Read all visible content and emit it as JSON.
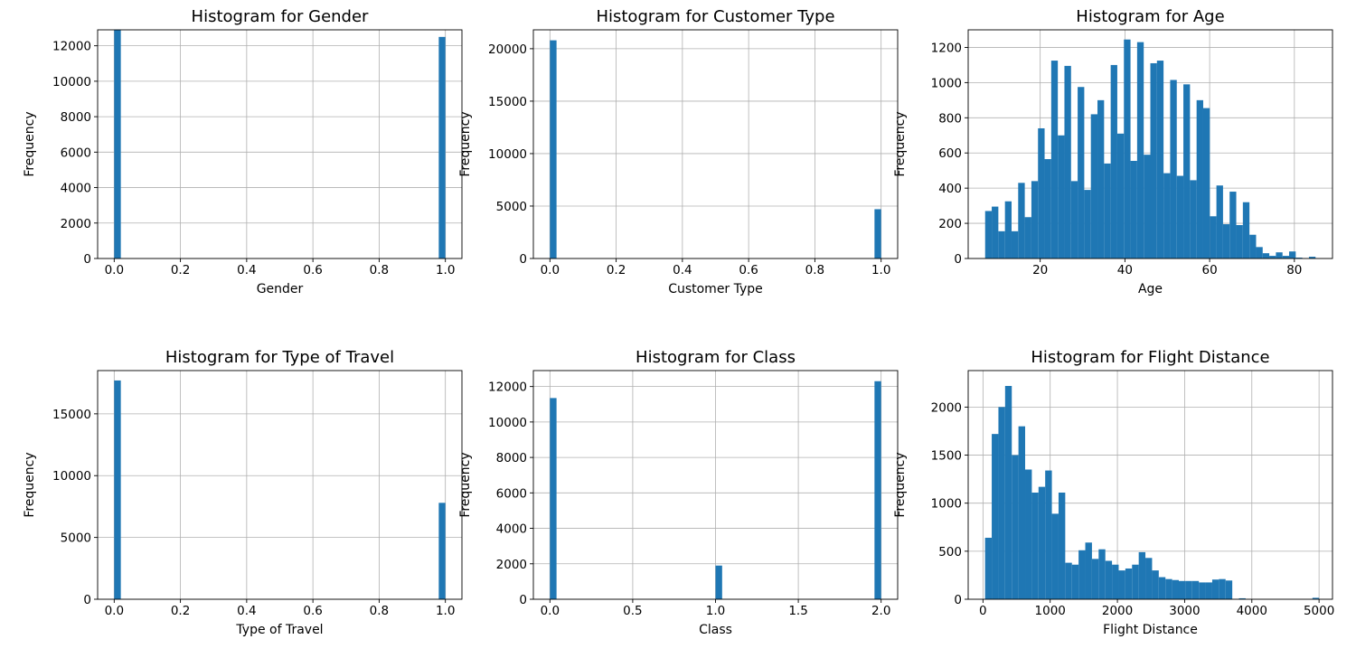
{
  "chart_data": [
    {
      "type": "bar",
      "title": "Histogram for Gender",
      "xlabel": "Gender",
      "ylabel": "Frequency",
      "xlim": [
        -0.05,
        1.05
      ],
      "ylim": [
        0,
        12900
      ],
      "xticks": [
        0.0,
        0.2,
        0.4,
        0.6,
        0.8,
        1.0
      ],
      "xtick_labels": [
        "0.0",
        "0.2",
        "0.4",
        "0.6",
        "0.8",
        "1.0"
      ],
      "yticks": [
        0,
        2000,
        4000,
        6000,
        8000,
        10000,
        12000
      ],
      "ytick_labels": [
        "0",
        "2000",
        "4000",
        "6000",
        "8000",
        "10000",
        "12000"
      ],
      "grid": true,
      "bins": [
        {
          "x0": 0.0,
          "x1": 0.02,
          "count": 12900
        },
        {
          "x0": 0.98,
          "x1": 1.0,
          "count": 12500
        }
      ]
    },
    {
      "type": "bar",
      "title": "Histogram for Customer Type",
      "xlabel": "Customer Type",
      "ylabel": "Frequency",
      "xlim": [
        -0.05,
        1.05
      ],
      "ylim": [
        0,
        21800
      ],
      "xticks": [
        0.0,
        0.2,
        0.4,
        0.6,
        0.8,
        1.0
      ],
      "xtick_labels": [
        "0.0",
        "0.2",
        "0.4",
        "0.6",
        "0.8",
        "1.0"
      ],
      "yticks": [
        0,
        5000,
        10000,
        15000,
        20000
      ],
      "ytick_labels": [
        "0",
        "5000",
        "10000",
        "15000",
        "20000"
      ],
      "grid": true,
      "bins": [
        {
          "x0": 0.0,
          "x1": 0.02,
          "count": 20800
        },
        {
          "x0": 0.98,
          "x1": 1.0,
          "count": 4700
        }
      ]
    },
    {
      "type": "bar",
      "title": "Histogram for Age",
      "xlabel": "Age",
      "ylabel": "Frequency",
      "xlim": [
        3,
        89
      ],
      "ylim": [
        0,
        1300
      ],
      "xticks": [
        20,
        40,
        60,
        80
      ],
      "xtick_labels": [
        "20",
        "40",
        "60",
        "80"
      ],
      "yticks": [
        0,
        200,
        400,
        600,
        800,
        1000,
        1200
      ],
      "ytick_labels": [
        "0",
        "200",
        "400",
        "600",
        "800",
        "1000",
        "1200"
      ],
      "grid": true,
      "x_start": 7,
      "bin_width": 1.56,
      "counts": [
        270,
        295,
        155,
        325,
        155,
        430,
        235,
        440,
        740,
        565,
        1125,
        700,
        1095,
        440,
        975,
        390,
        820,
        900,
        540,
        1100,
        710,
        1245,
        555,
        1230,
        590,
        1110,
        1125,
        485,
        1015,
        470,
        990,
        445,
        900,
        855,
        240,
        415,
        195,
        380,
        190,
        320,
        135,
        65,
        30,
        15,
        35,
        15,
        40,
        5,
        0,
        10
      ]
    },
    {
      "type": "bar",
      "title": "Histogram for Type of Travel",
      "xlabel": "Type of Travel",
      "ylabel": "Frequency",
      "xlim": [
        -0.05,
        1.05
      ],
      "ylim": [
        0,
        18500
      ],
      "xticks": [
        0.0,
        0.2,
        0.4,
        0.6,
        0.8,
        1.0
      ],
      "xtick_labels": [
        "0.0",
        "0.2",
        "0.4",
        "0.6",
        "0.8",
        "1.0"
      ],
      "yticks": [
        0,
        5000,
        10000,
        15000
      ],
      "ytick_labels": [
        "0",
        "5000",
        "10000",
        "15000"
      ],
      "grid": true,
      "bins": [
        {
          "x0": 0.0,
          "x1": 0.02,
          "count": 17700
        },
        {
          "x0": 0.98,
          "x1": 1.0,
          "count": 7800
        }
      ]
    },
    {
      "type": "bar",
      "title": "Histogram for Class",
      "xlabel": "Class",
      "ylabel": "Frequency",
      "xlim": [
        -0.1,
        2.1
      ],
      "ylim": [
        0,
        12900
      ],
      "xticks": [
        0.0,
        0.5,
        1.0,
        1.5,
        2.0
      ],
      "xtick_labels": [
        "0.0",
        "0.5",
        "1.0",
        "1.5",
        "2.0"
      ],
      "yticks": [
        0,
        2000,
        4000,
        6000,
        8000,
        10000,
        12000
      ],
      "ytick_labels": [
        "0",
        "2000",
        "4000",
        "6000",
        "8000",
        "10000",
        "12000"
      ],
      "grid": true,
      "bins": [
        {
          "x0": 0.0,
          "x1": 0.04,
          "count": 11350
        },
        {
          "x0": 1.0,
          "x1": 1.04,
          "count": 1900
        },
        {
          "x0": 1.96,
          "x1": 2.0,
          "count": 12300
        }
      ]
    },
    {
      "type": "bar",
      "title": "Histogram for Flight Distance",
      "xlabel": "Flight Distance",
      "ylabel": "Frequency",
      "xlim": [
        -220,
        5200
      ],
      "ylim": [
        0,
        2380
      ],
      "xticks": [
        0,
        1000,
        2000,
        3000,
        4000,
        5000
      ],
      "xtick_labels": [
        "0",
        "1000",
        "2000",
        "3000",
        "4000",
        "5000"
      ],
      "yticks": [
        0,
        500,
        1000,
        1500,
        2000
      ],
      "ytick_labels": [
        "0",
        "500",
        "1000",
        "1500",
        "2000"
      ],
      "grid": true,
      "x_start": 31,
      "bin_width": 99.4,
      "counts": [
        640,
        1720,
        2000,
        2220,
        1500,
        1800,
        1350,
        1110,
        1170,
        1340,
        890,
        1110,
        380,
        360,
        510,
        590,
        420,
        520,
        400,
        360,
        300,
        320,
        360,
        490,
        430,
        300,
        230,
        210,
        200,
        190,
        190,
        190,
        175,
        175,
        205,
        210,
        195,
        0,
        10,
        0,
        0,
        0,
        0,
        0,
        0,
        0,
        0,
        0,
        0,
        15
      ]
    }
  ]
}
